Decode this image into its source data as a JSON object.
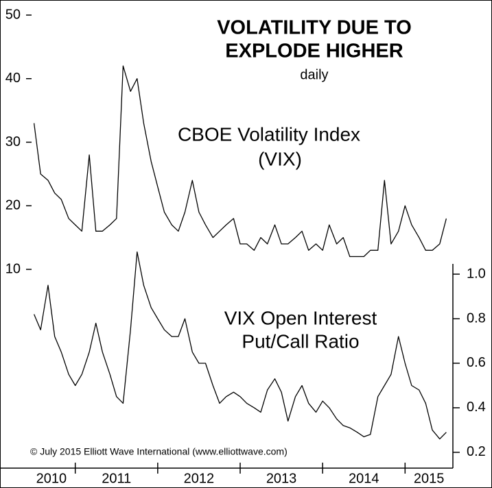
{
  "chart_data": {
    "type": "line",
    "title_lines": [
      "VOLATILITY DUE TO",
      "EXPLODE HIGHER"
    ],
    "subtitle": "daily",
    "annotations": [
      {
        "lines": [
          "CBOE Volatility Index",
          "(VIX)"
        ]
      },
      {
        "lines": [
          "VIX Open Interest",
          "Put/Call Ratio"
        ]
      }
    ],
    "credit": "© July 2015 Elliott Wave International (www.elliottwave.com)",
    "x": [
      2010.5,
      2010.58,
      2010.67,
      2010.75,
      2010.83,
      2010.92,
      2011.0,
      2011.08,
      2011.17,
      2011.25,
      2011.33,
      2011.42,
      2011.5,
      2011.58,
      2011.67,
      2011.75,
      2011.83,
      2011.92,
      2012.0,
      2012.08,
      2012.17,
      2012.25,
      2012.33,
      2012.42,
      2012.5,
      2012.58,
      2012.67,
      2012.75,
      2012.83,
      2012.92,
      2013.0,
      2013.08,
      2013.17,
      2013.25,
      2013.33,
      2013.42,
      2013.5,
      2013.58,
      2013.67,
      2013.75,
      2013.83,
      2013.92,
      2014.0,
      2014.08,
      2014.17,
      2014.25,
      2014.33,
      2014.42,
      2014.5,
      2014.58,
      2014.67,
      2014.75,
      2014.83,
      2014.92,
      2015.0,
      2015.08,
      2015.17,
      2015.25,
      2015.33,
      2015.42,
      2015.5
    ],
    "series": [
      {
        "color": "#000000",
        "axis": "y",
        "values": [
          33,
          25,
          24,
          22,
          21,
          18,
          17,
          16,
          28,
          16,
          16,
          17,
          18,
          42,
          38,
          40,
          33,
          27,
          23,
          19,
          17,
          16,
          19,
          24,
          19,
          17,
          15,
          16,
          17,
          18,
          14,
          14,
          13,
          15,
          14,
          17,
          14,
          14,
          15,
          16,
          13,
          14,
          13,
          17,
          14,
          15,
          12,
          12,
          12,
          13,
          13,
          24,
          14,
          16,
          20,
          17,
          15,
          13,
          13,
          14,
          18
        ]
      },
      {
        "color": "#000000",
        "axis": "y2",
        "values": [
          0.82,
          0.75,
          0.95,
          0.72,
          0.65,
          0.55,
          0.5,
          0.55,
          0.65,
          0.78,
          0.65,
          0.55,
          0.45,
          0.42,
          0.75,
          1.1,
          0.95,
          0.85,
          0.8,
          0.75,
          0.72,
          0.72,
          0.8,
          0.65,
          0.6,
          0.6,
          0.5,
          0.42,
          0.45,
          0.47,
          0.45,
          0.42,
          0.4,
          0.38,
          0.48,
          0.53,
          0.47,
          0.34,
          0.45,
          0.5,
          0.42,
          0.38,
          0.43,
          0.4,
          0.35,
          0.32,
          0.31,
          0.29,
          0.27,
          0.28,
          0.45,
          0.5,
          0.55,
          0.72,
          0.6,
          0.5,
          0.48,
          0.42,
          0.3,
          0.26,
          0.29
        ]
      }
    ],
    "xlim": [
      2010.42,
      2015.58
    ],
    "xticks": [
      {
        "value": 2010,
        "label": "2010"
      },
      {
        "value": 2011,
        "label": "2011"
      },
      {
        "value": 2012,
        "label": "2012"
      },
      {
        "value": 2013,
        "label": "2013"
      },
      {
        "value": 2014,
        "label": "2014"
      },
      {
        "value": 2015,
        "label": "2015"
      }
    ],
    "ylim": [
      -21.27,
      52.37
    ],
    "yticks": [
      10,
      20,
      30,
      40,
      50
    ],
    "y2lim": [
      0.129,
      2.231
    ],
    "y2ticks": [
      {
        "value": 1.0,
        "label": "1.0"
      },
      0.8,
      0.6,
      0.4,
      0.2
    ]
  }
}
